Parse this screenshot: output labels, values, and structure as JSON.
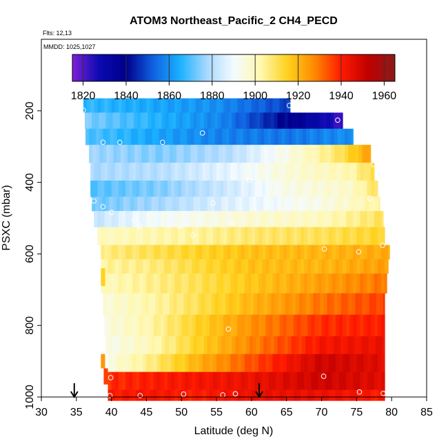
{
  "chart_data": {
    "type": "heatmap",
    "title": "ATOM3 Northeast_Pacific_2 CH4_PECD",
    "flights_label": "Flts: 12,13",
    "dates_label": "MMDD: 1025,1027",
    "xlabel": "Latitude (deg N)",
    "ylabel": "PSXC (mbar)",
    "xlim": [
      30,
      85
    ],
    "ylim": [
      1000,
      0
    ],
    "x_ticks": [
      30,
      35,
      40,
      45,
      50,
      55,
      60,
      65,
      70,
      75,
      80,
      85
    ],
    "y_ticks": [
      200,
      400,
      600,
      800,
      1000
    ],
    "colorbar": {
      "range": [
        1815,
        1965
      ],
      "ticks": [
        1820,
        1840,
        1860,
        1880,
        1900,
        1920,
        1940,
        1960
      ],
      "colors": [
        "#7f1fd6",
        "#0a0ab0",
        "#00008b",
        "#1060e0",
        "#1ab0ff",
        "#a8d8ff",
        "#f4fbff",
        "#fff8b0",
        "#ffd21e",
        "#ff8a00",
        "#ff1a00",
        "#c00000",
        "#8b1a1a"
      ]
    },
    "curtain_rows": [
      {
        "pressure": [
          165,
          205
        ],
        "lat": [
          36.0,
          65.5
        ],
        "values": [
          [
            36,
            1867
          ],
          [
            45,
            1864
          ],
          [
            55,
            1860
          ],
          [
            62,
            1852
          ],
          [
            65.5,
            1848
          ]
        ]
      },
      {
        "pressure": [
          205,
          250
        ],
        "lat": [
          36.2,
          73.0
        ],
        "values": [
          [
            36.2,
            1874
          ],
          [
            46,
            1866
          ],
          [
            56,
            1858
          ],
          [
            62,
            1846
          ],
          [
            67,
            1836
          ],
          [
            71,
            1826
          ],
          [
            73,
            1822
          ]
        ]
      },
      {
        "pressure": [
          250,
          295
        ],
        "lat": [
          36.3,
          74.5
        ],
        "values": [
          [
            36.3,
            1870
          ],
          [
            45,
            1864
          ],
          [
            55,
            1858
          ],
          [
            65,
            1856
          ],
          [
            74.5,
            1860
          ]
        ]
      },
      {
        "pressure": [
          295,
          345
        ],
        "lat": [
          36.8,
          77.0
        ],
        "values": [
          [
            36.8,
            1877
          ],
          [
            47,
            1874
          ],
          [
            57,
            1880
          ],
          [
            65,
            1894
          ],
          [
            72,
            1908
          ],
          [
            77,
            1924
          ]
        ]
      },
      {
        "pressure": [
          345,
          395
        ],
        "lat": [
          37.0,
          77.5
        ],
        "values": [
          [
            37,
            1878
          ],
          [
            47,
            1880
          ],
          [
            57,
            1888
          ],
          [
            66,
            1897
          ],
          [
            74,
            1902
          ],
          [
            77.5,
            1912
          ]
        ]
      },
      {
        "pressure": [
          395,
          440
        ],
        "lat": [
          37.0,
          78.0
        ],
        "values": [
          [
            37,
            1870
          ],
          [
            47,
            1874
          ],
          [
            57,
            1884
          ],
          [
            65,
            1894
          ],
          [
            74,
            1898
          ],
          [
            78,
            1910
          ]
        ]
      },
      {
        "pressure": [
          440,
          480
        ],
        "lat": [
          37.2,
          78.3
        ],
        "values": [
          [
            37.2,
            1872
          ],
          [
            47,
            1878
          ],
          [
            55,
            1885
          ],
          [
            63,
            1890
          ],
          [
            70,
            1894
          ],
          [
            78.3,
            1904
          ]
        ]
      },
      {
        "pressure": [
          480,
          525
        ],
        "lat": [
          37.5,
          78.8
        ],
        "values": [
          [
            37.5,
            1882
          ],
          [
            45,
            1890
          ],
          [
            52,
            1893
          ],
          [
            60,
            1897
          ],
          [
            70,
            1900
          ],
          [
            78.8,
            1910
          ]
        ]
      },
      {
        "pressure": [
          525,
          575
        ],
        "lat": [
          38.0,
          79.0
        ],
        "values": [
          [
            38,
            1900
          ],
          [
            45,
            1902
          ],
          [
            52,
            1904
          ],
          [
            60,
            1908
          ],
          [
            70,
            1910
          ],
          [
            79,
            1914
          ]
        ]
      },
      {
        "pressure": [
          575,
          615
        ],
        "lat": [
          38.5,
          79.7
        ],
        "values": [
          [
            38.5,
            1906
          ],
          [
            45,
            1910
          ],
          [
            52,
            1914
          ],
          [
            60,
            1918
          ],
          [
            70,
            1920
          ],
          [
            79.7,
            1922
          ]
        ]
      },
      {
        "pressure": [
          615,
          655
        ],
        "lat": [
          38.5,
          79.5
        ],
        "values": [
          [
            38.5,
            1904
          ],
          [
            45,
            1906
          ],
          [
            52,
            1912
          ],
          [
            60,
            1918
          ],
          [
            70,
            1920
          ],
          [
            79.5,
            1924
          ]
        ]
      },
      {
        "pressure": [
          655,
          710
        ],
        "lat": [
          38.5,
          79.3
        ],
        "values": [
          [
            38.5,
            1900
          ],
          [
            45,
            1905
          ],
          [
            52,
            1910
          ],
          [
            60,
            1917
          ],
          [
            70,
            1924
          ],
          [
            79.3,
            1930
          ]
        ]
      },
      {
        "pressure": [
          710,
          770
        ],
        "lat": [
          38.8,
          79.0
        ],
        "values": [
          [
            38.8,
            1896
          ],
          [
            45,
            1902
          ],
          [
            52,
            1910
          ],
          [
            60,
            1920
          ],
          [
            70,
            1930
          ],
          [
            79,
            1936
          ]
        ]
      },
      {
        "pressure": [
          770,
          830
        ],
        "lat": [
          39.0,
          79.0
        ],
        "values": [
          [
            39,
            1895
          ],
          [
            45,
            1902
          ],
          [
            52,
            1914
          ],
          [
            60,
            1926
          ],
          [
            70,
            1938
          ],
          [
            79,
            1940
          ]
        ]
      },
      {
        "pressure": [
          830,
          880
        ],
        "lat": [
          39.2,
          79.0
        ],
        "values": [
          [
            39.2,
            1893
          ],
          [
            45,
            1900
          ],
          [
            52,
            1914
          ],
          [
            60,
            1928
          ],
          [
            70,
            1942
          ],
          [
            79,
            1944
          ]
        ]
      },
      {
        "pressure": [
          880,
          930
        ],
        "lat": [
          39.5,
          79.0
        ],
        "values": [
          [
            39.5,
            1895
          ],
          [
            45,
            1905
          ],
          [
            52,
            1920
          ],
          [
            60,
            1934
          ],
          [
            70,
            1950
          ],
          [
            79,
            1946
          ]
        ]
      },
      {
        "pressure": [
          930,
          980
        ],
        "lat": [
          39.5,
          79.0
        ],
        "values": [
          [
            39.5,
            1938
          ],
          [
            45,
            1940
          ],
          [
            52,
            1942
          ],
          [
            60,
            1944
          ],
          [
            70,
            1950
          ],
          [
            79,
            1946
          ]
        ]
      },
      {
        "pressure": [
          980,
          1010
        ],
        "lat": [
          39.5,
          79.0
        ],
        "values": [
          [
            39.5,
            1940
          ],
          [
            45,
            1942
          ],
          [
            52,
            1940
          ],
          [
            60,
            1944
          ],
          [
            70,
            1944
          ],
          [
            79,
            1940
          ]
        ]
      }
    ],
    "edge_blips": [
      {
        "lat": 38.8,
        "pressure": [
          640,
          690
        ],
        "value": 1915
      },
      {
        "lat": 38.8,
        "pressure": [
          880,
          920
        ],
        "value": 1925
      },
      {
        "lat": 39.2,
        "pressure": [
          920,
          965
        ],
        "value": 1936
      }
    ],
    "sample_points": [
      [
        36.0,
        198
      ],
      [
        65.4,
        185
      ],
      [
        72.3,
        226
      ],
      [
        38.8,
        288
      ],
      [
        41.2,
        288
      ],
      [
        47.3,
        288
      ],
      [
        53.0,
        262
      ],
      [
        77.4,
        350
      ],
      [
        59.7,
        394
      ],
      [
        37.5,
        452
      ],
      [
        38.8,
        468
      ],
      [
        40.0,
        484
      ],
      [
        76.9,
        444
      ],
      [
        54.5,
        458
      ],
      [
        44.0,
        522
      ],
      [
        49.7,
        522
      ],
      [
        51.6,
        548
      ],
      [
        57.4,
        514
      ],
      [
        43.3,
        504
      ],
      [
        70.4,
        586
      ],
      [
        75.3,
        594
      ],
      [
        78.7,
        576
      ],
      [
        56.7,
        810
      ],
      [
        70.3,
        942
      ],
      [
        39.9,
        946
      ],
      [
        39.8,
        996
      ],
      [
        44.1,
        996
      ],
      [
        50.3,
        992
      ],
      [
        55.9,
        994
      ],
      [
        57.7,
        991
      ],
      [
        75.4,
        986
      ],
      [
        78.8,
        990
      ]
    ],
    "arrows_lat": [
      34.7,
      61.1
    ]
  }
}
